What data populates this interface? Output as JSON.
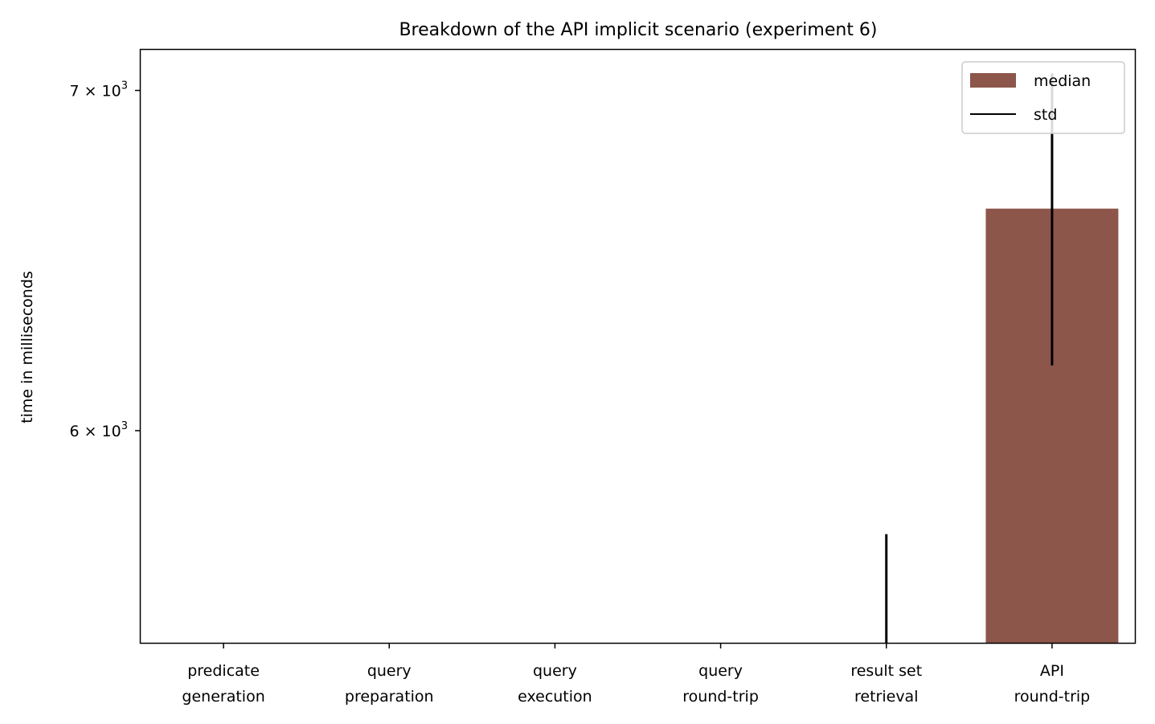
{
  "chart_data": {
    "type": "bar",
    "title": "Breakdown of the API implicit scenario (experiment 6)",
    "xlabel": "",
    "ylabel": "time in milliseconds",
    "yscale": "log",
    "ylim": [
      5450,
      7130
    ],
    "categories": [
      [
        "predicate",
        "generation"
      ],
      [
        "query",
        "preparation"
      ],
      [
        "query",
        "execution"
      ],
      [
        "query",
        "round-trip"
      ],
      [
        "result set",
        "retrieval"
      ],
      [
        "API",
        "round-trip"
      ]
    ],
    "y_ticks": [
      {
        "value": 6000,
        "label": "6 × 10",
        "exp": "3"
      },
      {
        "value": 7000,
        "label": "7 × 10",
        "exp": "3"
      }
    ],
    "series": [
      {
        "name": "median",
        "color": "#8c564b",
        "values": [
          null,
          null,
          null,
          null,
          null,
          6635
        ]
      }
    ],
    "error_bars": {
      "name": "std",
      "color": "#000000",
      "ranges": [
        null,
        null,
        null,
        null,
        [
          5450,
          5725
        ],
        [
          6180,
          7055
        ]
      ]
    },
    "legend": {
      "position": "top-right",
      "entries": [
        {
          "label": "median",
          "kind": "patch",
          "color": "#8c564b"
        },
        {
          "label": "std",
          "kind": "line",
          "color": "#000000"
        }
      ]
    },
    "grid": false
  }
}
